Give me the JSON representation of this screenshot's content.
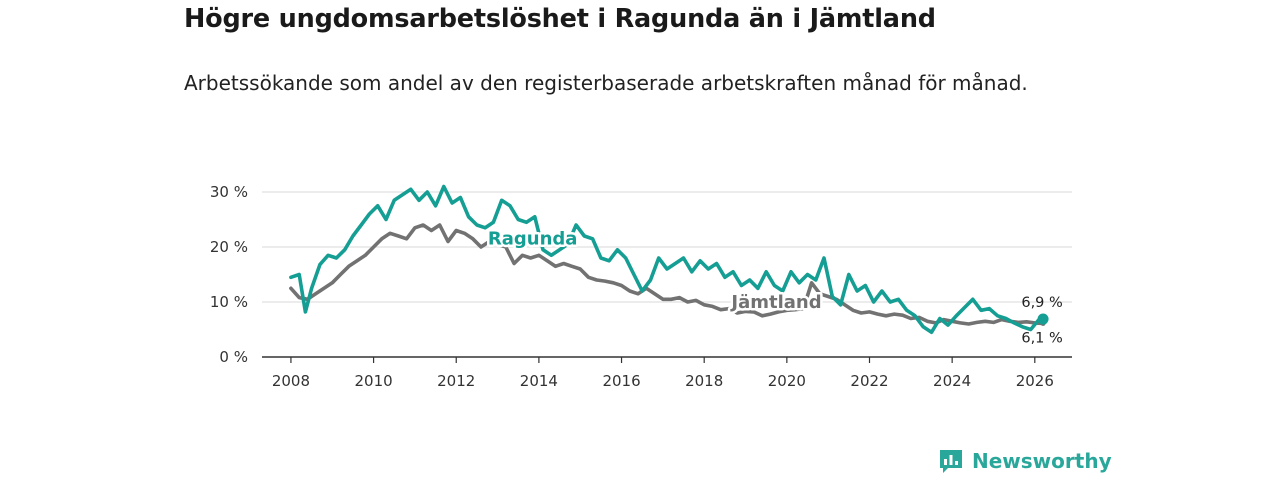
{
  "header": {
    "title": "Högre ungdomsarbetslöshet i Ragunda än i Jämtland",
    "subtitle": "Arbetssökande som andel av den registerbaserade arbetskraften månad för månad."
  },
  "brand": {
    "name": "Newsworthy"
  },
  "colors": {
    "ragunda": "#159e93",
    "jamtland": "#727272",
    "grid": "#d9d9d9",
    "axis": "#333333"
  },
  "chart_data": {
    "type": "line",
    "title": "Högre ungdomsarbetslöshet i Ragunda än i Jämtland",
    "xlabel": "",
    "ylabel": "",
    "xlim": [
      2007.3,
      2026.9
    ],
    "ylim": [
      0,
      30
    ],
    "x_ticks": [
      2008,
      2010,
      2012,
      2014,
      2016,
      2018,
      2020,
      2022,
      2024,
      2026
    ],
    "x_tick_labels": [
      "2008",
      "2010",
      "2012",
      "2014",
      "2016",
      "2018",
      "2020",
      "2022",
      "2024",
      "2026"
    ],
    "y_ticks": [
      0,
      10,
      20,
      30
    ],
    "y_tick_labels": [
      "0 %",
      "10 %",
      "20 %",
      "30 %"
    ],
    "grid": true,
    "series": [
      {
        "name": "Ragunda",
        "label": "Ragunda",
        "end_label": "6,9 %",
        "x": [
          2008.0,
          2008.2,
          2008.35,
          2008.5,
          2008.7,
          2008.9,
          2009.1,
          2009.3,
          2009.5,
          2009.7,
          2009.9,
          2010.1,
          2010.3,
          2010.5,
          2010.7,
          2010.9,
          2011.1,
          2011.3,
          2011.5,
          2011.7,
          2011.9,
          2012.1,
          2012.3,
          2012.5,
          2012.7,
          2012.9,
          2013.1,
          2013.3,
          2013.5,
          2013.7,
          2013.9,
          2014.1,
          2014.3,
          2014.5,
          2014.7,
          2014.9,
          2015.1,
          2015.3,
          2015.5,
          2015.7,
          2015.9,
          2016.1,
          2016.3,
          2016.5,
          2016.7,
          2016.9,
          2017.1,
          2017.3,
          2017.5,
          2017.7,
          2017.9,
          2018.1,
          2018.3,
          2018.5,
          2018.7,
          2018.9,
          2019.1,
          2019.3,
          2019.5,
          2019.7,
          2019.9,
          2020.1,
          2020.3,
          2020.5,
          2020.7,
          2020.9,
          2021.1,
          2021.3,
          2021.5,
          2021.7,
          2021.9,
          2022.1,
          2022.3,
          2022.5,
          2022.7,
          2022.9,
          2023.1,
          2023.3,
          2023.5,
          2023.7,
          2023.9,
          2024.1,
          2024.3,
          2024.5,
          2024.7,
          2024.9,
          2025.1,
          2025.3,
          2025.5,
          2025.7,
          2025.9,
          2026.1,
          2026.2
        ],
        "values": [
          14.5,
          15.0,
          8.2,
          12.5,
          16.8,
          18.5,
          18.0,
          19.5,
          22.0,
          24.0,
          26.0,
          27.5,
          25.0,
          28.5,
          29.5,
          30.5,
          28.5,
          30.0,
          27.5,
          31.0,
          28.0,
          29.0,
          25.5,
          24.0,
          23.5,
          24.5,
          28.5,
          27.5,
          25.0,
          24.5,
          25.5,
          19.5,
          18.5,
          19.5,
          20.5,
          24.0,
          22.0,
          21.5,
          18.0,
          17.5,
          19.5,
          18.0,
          15.0,
          12.0,
          14.0,
          18.0,
          16.0,
          17.0,
          18.0,
          15.5,
          17.5,
          16.0,
          17.0,
          14.5,
          15.5,
          13.0,
          14.0,
          12.5,
          15.5,
          13.0,
          12.0,
          15.5,
          13.5,
          15.0,
          14.0,
          18.0,
          11.0,
          9.5,
          15.0,
          12.0,
          13.0,
          10.0,
          12.0,
          10.0,
          10.5,
          8.5,
          7.5,
          5.5,
          4.5,
          7.0,
          5.8,
          7.5,
          9.0,
          10.5,
          8.5,
          8.8,
          7.5,
          7.0,
          6.2,
          5.5,
          5.0,
          6.8,
          6.9
        ]
      },
      {
        "name": "Jämtland",
        "label": "Jämtland",
        "end_label": "6,1 %",
        "x": [
          2008.0,
          2008.2,
          2008.4,
          2008.6,
          2008.8,
          2009.0,
          2009.2,
          2009.4,
          2009.6,
          2009.8,
          2010.0,
          2010.2,
          2010.4,
          2010.6,
          2010.8,
          2011.0,
          2011.2,
          2011.4,
          2011.6,
          2011.8,
          2012.0,
          2012.2,
          2012.4,
          2012.6,
          2012.8,
          2013.0,
          2013.2,
          2013.4,
          2013.6,
          2013.8,
          2014.0,
          2014.2,
          2014.4,
          2014.6,
          2014.8,
          2015.0,
          2015.2,
          2015.4,
          2015.6,
          2015.8,
          2016.0,
          2016.2,
          2016.4,
          2016.6,
          2016.8,
          2017.0,
          2017.2,
          2017.4,
          2017.6,
          2017.8,
          2018.0,
          2018.2,
          2018.4,
          2018.6,
          2018.8,
          2019.0,
          2019.2,
          2019.4,
          2019.6,
          2019.8,
          2020.0,
          2020.2,
          2020.4,
          2020.6,
          2020.8,
          2021.0,
          2021.2,
          2021.4,
          2021.6,
          2021.8,
          2022.0,
          2022.2,
          2022.4,
          2022.6,
          2022.8,
          2023.0,
          2023.2,
          2023.4,
          2023.6,
          2023.8,
          2024.0,
          2024.2,
          2024.4,
          2024.6,
          2024.8,
          2025.0,
          2025.2,
          2025.4,
          2025.6,
          2025.8,
          2026.0,
          2026.2
        ],
        "values": [
          12.5,
          10.8,
          10.5,
          11.5,
          12.5,
          13.5,
          15.0,
          16.5,
          17.5,
          18.5,
          20.0,
          21.5,
          22.5,
          22.0,
          21.5,
          23.5,
          24.0,
          23.0,
          24.0,
          21.0,
          23.0,
          22.5,
          21.5,
          20.0,
          21.0,
          20.5,
          20.0,
          17.0,
          18.5,
          18.0,
          18.5,
          17.5,
          16.5,
          17.0,
          16.5,
          16.0,
          14.5,
          14.0,
          13.8,
          13.5,
          13.0,
          12.0,
          11.5,
          12.5,
          11.5,
          10.5,
          10.5,
          10.8,
          10.0,
          10.3,
          9.5,
          9.2,
          8.6,
          8.8,
          8.0,
          8.3,
          8.2,
          7.5,
          7.8,
          8.2,
          8.5,
          8.6,
          8.8,
          13.5,
          11.5,
          11.0,
          10.5,
          9.5,
          8.5,
          8.0,
          8.2,
          7.8,
          7.5,
          7.8,
          7.6,
          7.0,
          7.2,
          6.5,
          6.2,
          6.8,
          6.5,
          6.2,
          6.0,
          6.3,
          6.5,
          6.3,
          6.8,
          6.5,
          6.3,
          6.4,
          6.2,
          6.1
        ]
      }
    ]
  }
}
